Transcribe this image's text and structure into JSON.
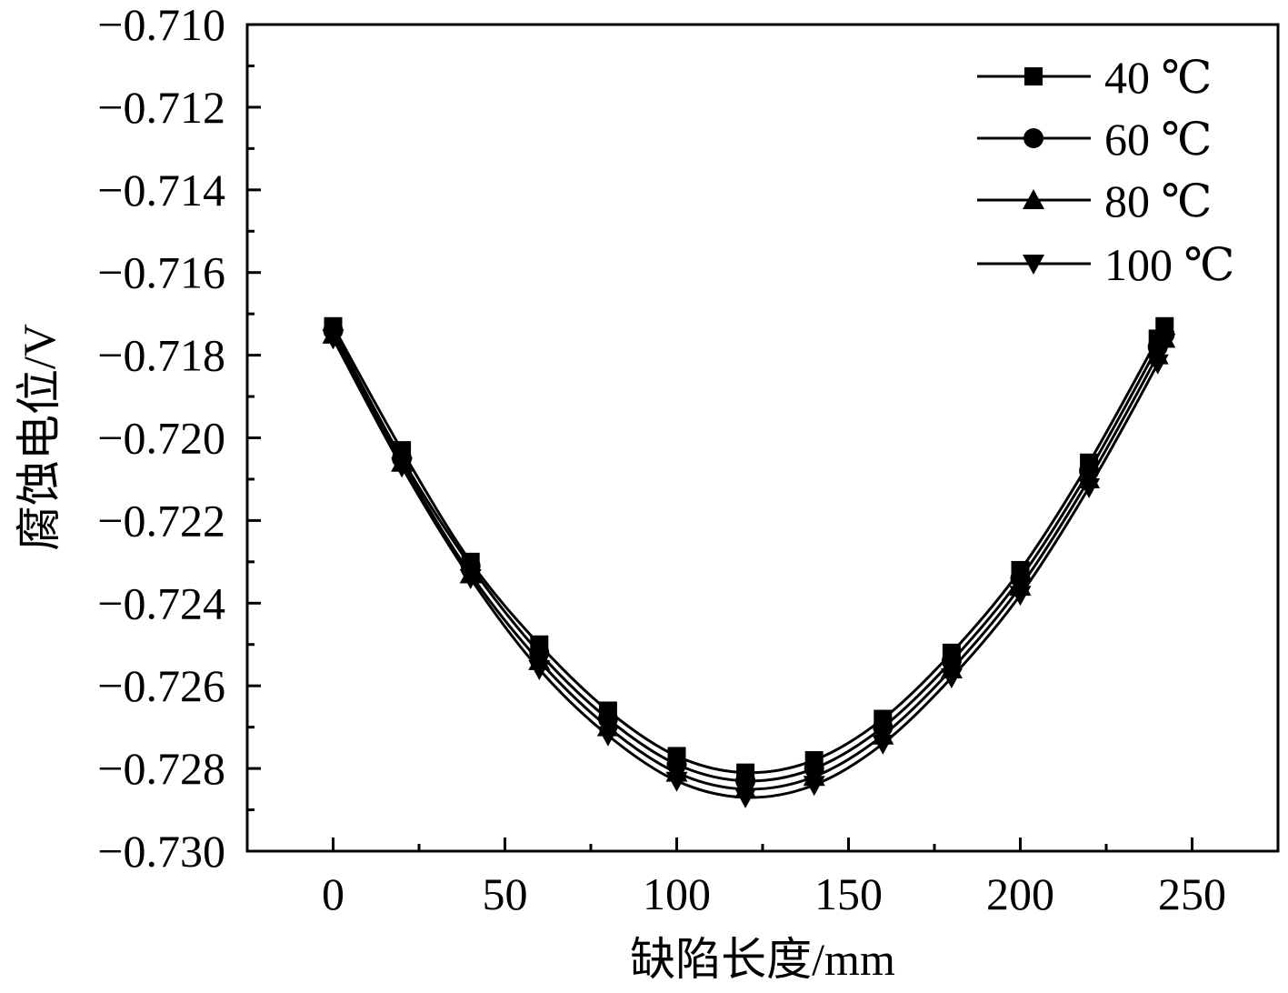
{
  "chart_data": {
    "type": "line",
    "xlabel": "缺陷长度/mm",
    "ylabel": "腐蚀电位/V",
    "xlim": [
      -25,
      275
    ],
    "ylim": [
      -0.73,
      -0.71
    ],
    "x_ticks": [
      0,
      50,
      100,
      150,
      200,
      250
    ],
    "x_tick_labels": [
      "0",
      "50",
      "100",
      "150",
      "200",
      "250"
    ],
    "y_ticks": [
      -0.73,
      -0.728,
      -0.726,
      -0.724,
      -0.722,
      -0.72,
      -0.718,
      -0.716,
      -0.714,
      -0.712,
      -0.71
    ],
    "y_tick_labels": [
      "−0.730",
      "−0.728",
      "−0.726",
      "−0.724",
      "−0.722",
      "−0.720",
      "−0.718",
      "−0.716",
      "−0.714",
      "−0.712",
      "−0.710"
    ],
    "grid": false,
    "legend_position": "top-right",
    "x": [
      0,
      20,
      40,
      60,
      80,
      100,
      120,
      140,
      160,
      180,
      200,
      220,
      240,
      242
    ],
    "series": [
      {
        "name": "40 ℃",
        "marker": "square",
        "values": [
          -0.7173,
          -0.7203,
          -0.723,
          -0.725,
          -0.7266,
          -0.7277,
          -0.7281,
          -0.7278,
          -0.7268,
          -0.7252,
          -0.7232,
          -0.7206,
          -0.7176,
          -0.7173
        ]
      },
      {
        "name": "60 ℃",
        "marker": "circle",
        "values": [
          -0.7174,
          -0.7205,
          -0.7231,
          -0.7252,
          -0.7268,
          -0.7279,
          -0.7283,
          -0.728,
          -0.727,
          -0.7254,
          -0.7234,
          -0.7208,
          -0.7178,
          -0.7175
        ]
      },
      {
        "name": "80 ℃",
        "marker": "triangle-up",
        "values": [
          -0.7175,
          -0.7206,
          -0.7233,
          -0.7254,
          -0.727,
          -0.7281,
          -0.7285,
          -0.7282,
          -0.7272,
          -0.7256,
          -0.7236,
          -0.721,
          -0.718,
          -0.7176
        ]
      },
      {
        "name": "100 ℃",
        "marker": "triangle-down",
        "values": [
          -0.7176,
          -0.7207,
          -0.7234,
          -0.7256,
          -0.7272,
          -0.7283,
          -0.7287,
          -0.7284,
          -0.7274,
          -0.7258,
          -0.7238,
          -0.7212,
          -0.7182,
          -0.7177
        ]
      }
    ],
    "colors": {
      "line": "#000000",
      "background": "#ffffff"
    }
  }
}
